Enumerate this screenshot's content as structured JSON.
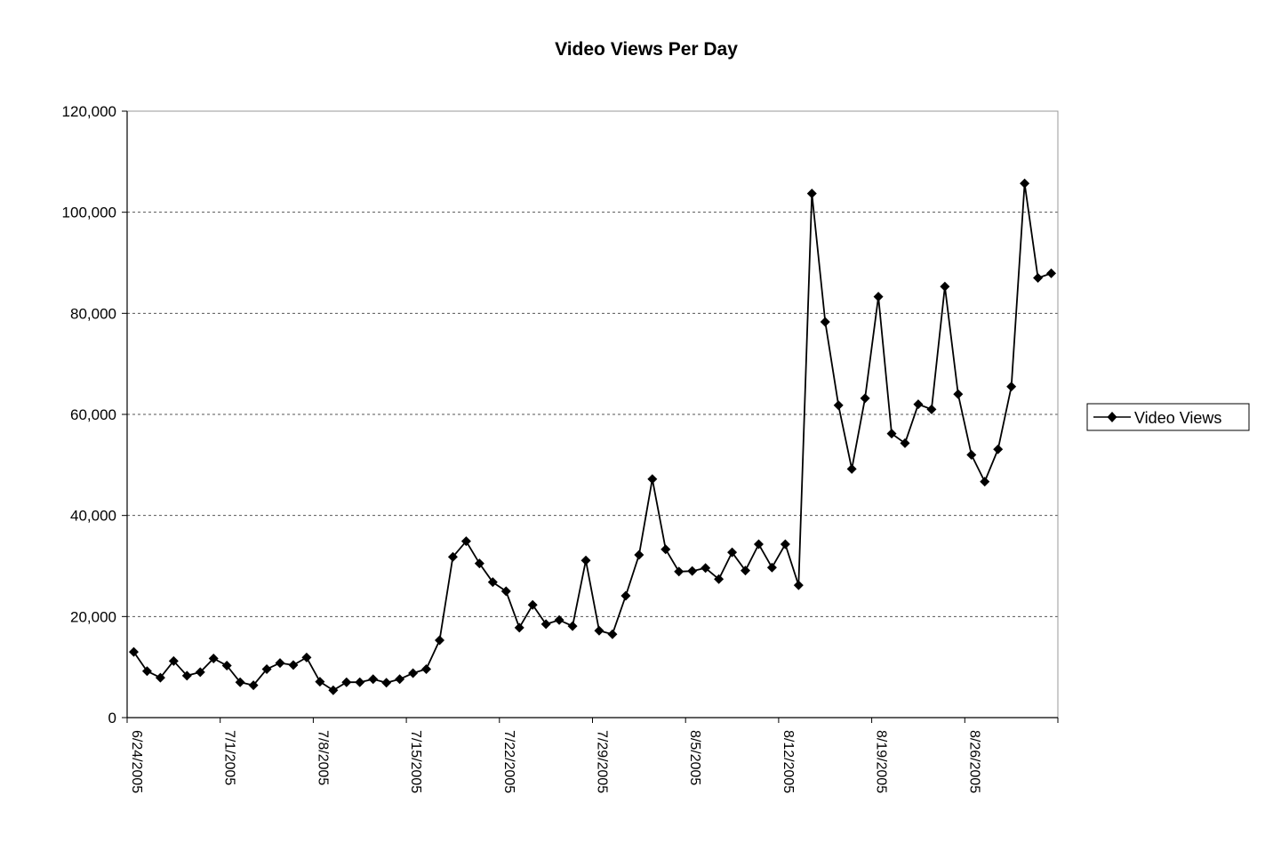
{
  "chart_data": {
    "type": "line",
    "title": "Video Views Per Day",
    "xlabel": "",
    "ylabel": "",
    "ylim": [
      0,
      120000
    ],
    "y_ticks": [
      "0",
      "20,000",
      "40,000",
      "60,000",
      "80,000",
      "100,000",
      "120,000"
    ],
    "y_tick_values": [
      0,
      20000,
      40000,
      60000,
      80000,
      100000,
      120000
    ],
    "x_ticks": [
      "6/24/2005",
      "7/1/2005",
      "7/8/2005",
      "7/15/2005",
      "7/22/2005",
      "7/29/2005",
      "8/5/2005",
      "8/12/2005",
      "8/19/2005",
      "8/26/2005"
    ],
    "x_range": [
      "6/24/2005",
      "9/2/2005"
    ],
    "grid": "horizontal dashed",
    "legend_position": "right",
    "series": [
      {
        "name": "Video Views",
        "color": "#000000",
        "marker": "diamond",
        "x": [
          "6/24/2005",
          "6/25/2005",
          "6/26/2005",
          "6/27/2005",
          "6/28/2005",
          "6/29/2005",
          "6/30/2005",
          "7/1/2005",
          "7/2/2005",
          "7/3/2005",
          "7/4/2005",
          "7/5/2005",
          "7/6/2005",
          "7/7/2005",
          "7/8/2005",
          "7/9/2005",
          "7/10/2005",
          "7/11/2005",
          "7/12/2005",
          "7/13/2005",
          "7/14/2005",
          "7/15/2005",
          "7/16/2005",
          "7/17/2005",
          "7/18/2005",
          "7/19/2005",
          "7/20/2005",
          "7/21/2005",
          "7/22/2005",
          "7/23/2005",
          "7/24/2005",
          "7/25/2005",
          "7/26/2005",
          "7/27/2005",
          "7/28/2005",
          "7/29/2005",
          "7/30/2005",
          "7/31/2005",
          "8/1/2005",
          "8/2/2005",
          "8/3/2005",
          "8/4/2005",
          "8/5/2005",
          "8/6/2005",
          "8/7/2005",
          "8/8/2005",
          "8/9/2005",
          "8/10/2005",
          "8/11/2005",
          "8/12/2005",
          "8/13/2005",
          "8/14/2005",
          "8/15/2005",
          "8/16/2005",
          "8/17/2005",
          "8/18/2005",
          "8/19/2005",
          "8/20/2005",
          "8/21/2005",
          "8/22/2005",
          "8/23/2005",
          "8/24/2005",
          "8/25/2005",
          "8/26/2005",
          "8/27/2005",
          "8/28/2005",
          "8/29/2005",
          "8/30/2005",
          "8/31/2005",
          "9/1/2005"
        ],
        "values": [
          13000,
          9200,
          7900,
          11200,
          8300,
          9000,
          11700,
          10300,
          7000,
          6400,
          9600,
          10800,
          10400,
          11900,
          7100,
          5400,
          7000,
          7000,
          7600,
          6900,
          7600,
          8800,
          9600,
          15300,
          31800,
          34900,
          30500,
          26800,
          25000,
          17800,
          22300,
          18500,
          19300,
          18100,
          31100,
          17200,
          16500,
          24100,
          32200,
          47200,
          33300,
          28900,
          29000,
          29600,
          27400,
          32700,
          29100,
          34300,
          29700,
          34300,
          26200,
          103700,
          78300,
          61800,
          49200,
          63200,
          83300,
          56200,
          54300,
          62000,
          61000,
          85300,
          64000,
          52000,
          46700,
          53100,
          65500,
          105700,
          87000,
          87900
        ]
      }
    ]
  }
}
